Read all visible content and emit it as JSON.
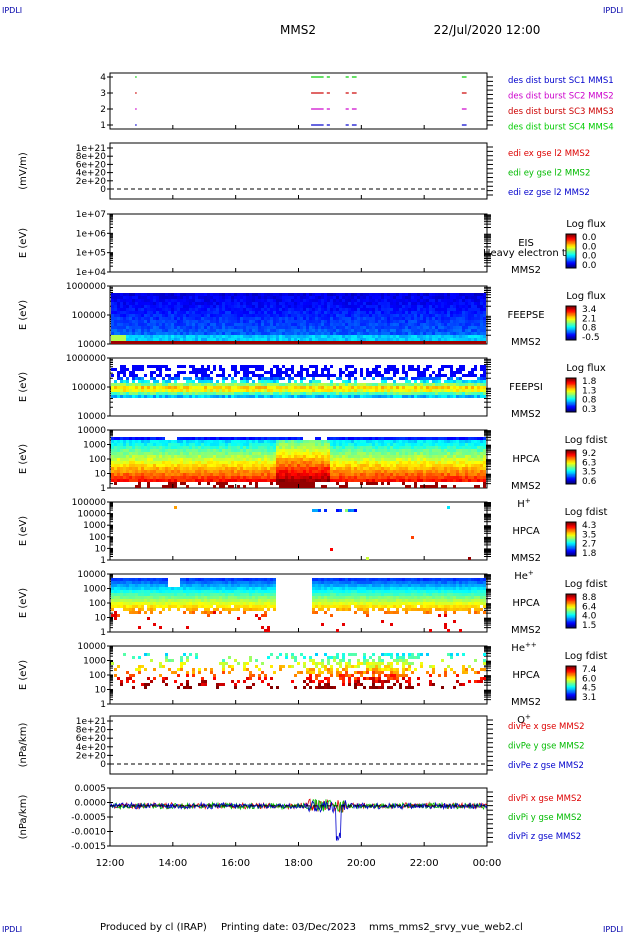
{
  "header": {
    "corner_label": "IPDLI",
    "spacecraft": "MMS2",
    "datetime": "22/Jul/2020 12:00"
  },
  "footer": {
    "produced_by": "Produced by cl (IRAP)",
    "printing_date": "Printing date: 03/Dec/2023",
    "script_name": "mms_mms2_srvy_vue_web2.cl"
  },
  "time_axis": {
    "ticks": [
      "12:00",
      "14:00",
      "16:00",
      "18:00",
      "20:00",
      "22:00",
      "00:00"
    ],
    "range_hours": [
      12,
      24
    ]
  },
  "colors": {
    "mms1": "#0000cc",
    "mms2": "#cc00cc",
    "mms3": "#cc0000",
    "mms4": "#00cc00",
    "x": "#dd0000",
    "y": "#00bb00",
    "z": "#0000cc"
  },
  "panels": [
    {
      "id": "burst",
      "type": "availability",
      "yticks": [
        "4",
        "3",
        "2",
        "1"
      ],
      "legend": [
        {
          "text": "des dist burst SC1 MMS1",
          "color": "#0000cc"
        },
        {
          "text": "des dist burst SC2 MMS2",
          "color": "#cc00cc"
        },
        {
          "text": "des dist burst SC3 MMS3",
          "color": "#cc0000"
        },
        {
          "text": "des dist burst SC4 MMS4",
          "color": "#00cc00"
        }
      ],
      "intervals_hours": [
        [
          12.8,
          12.85
        ],
        [
          18.4,
          18.8
        ],
        [
          18.9,
          19.0
        ],
        [
          19.5,
          19.6
        ],
        [
          19.7,
          19.85
        ],
        [
          23.2,
          23.35
        ]
      ]
    },
    {
      "id": "edi",
      "type": "line_empty",
      "ylabel": "(mV/m)",
      "yticks": [
        "1e+21",
        "8e+20",
        "6e+20",
        "4e+20",
        "2e+20",
        "0"
      ],
      "legend": [
        {
          "text": "edi ex gse l2 MMS2",
          "color": "#dd0000"
        },
        {
          "text": "edi ey gse l2 MMS2",
          "color": "#00bb00"
        },
        {
          "text": "edi ez gse l2 MMS2",
          "color": "#0000cc"
        }
      ]
    },
    {
      "id": "eis",
      "type": "spectrogram",
      "variant": "empty",
      "ylabel": "E (eV)",
      "yticks": [
        "1e+07",
        "1e+06",
        "1e+05",
        "1e+04"
      ],
      "instrument": "EIS",
      "instrument2": "MMS2",
      "overlay_text": "Heavy electron to",
      "cbar_title": "Log flux",
      "cbar_ticks": [
        "0.0",
        "0.0",
        "0.0",
        "0.0"
      ]
    },
    {
      "id": "feepse",
      "type": "spectrogram",
      "variant": "feeps_e",
      "ylabel": "E (eV)",
      "yticks": [
        "1000000",
        "100000",
        "10000"
      ],
      "instrument": "FEEPSE",
      "instrument2": "MMS2",
      "cbar_title": "Log flux",
      "cbar_ticks": [
        "3.4",
        "2.1",
        "0.8",
        "-0.5"
      ]
    },
    {
      "id": "feepsi",
      "type": "spectrogram",
      "variant": "feeps_i",
      "ylabel": "E (eV)",
      "yticks": [
        "1000000",
        "100000",
        "10000"
      ],
      "instrument": "FEEPSI",
      "instrument2": "MMS2",
      "cbar_title": "Log flux",
      "cbar_ticks": [
        "1.8",
        "1.3",
        "0.8",
        "0.3"
      ]
    },
    {
      "id": "hpca_h",
      "type": "spectrogram",
      "variant": "hpca_h",
      "ylabel": "E (eV)",
      "yticks": [
        "10000",
        "1000",
        "100",
        "10",
        "1"
      ],
      "instrument": "HPCA",
      "instrument2": "MMS2",
      "species": "H",
      "species_sup": "+",
      "cbar_title": "Log fdist",
      "cbar_ticks": [
        "9.2",
        "6.3",
        "3.5",
        "0.6"
      ]
    },
    {
      "id": "hpca_he",
      "type": "spectrogram",
      "variant": "hpca_he",
      "ylabel": "E (eV)",
      "yticks": [
        "100000",
        "10000",
        "1000",
        "100",
        "10",
        "1"
      ],
      "instrument": "HPCA",
      "instrument2": "MMS2",
      "species": "He",
      "species_sup": "+",
      "cbar_title": "Log fdist",
      "cbar_ticks": [
        "4.3",
        "3.5",
        "2.7",
        "1.8"
      ]
    },
    {
      "id": "hpca_he2",
      "type": "spectrogram",
      "variant": "hpca_he2",
      "ylabel": "E (eV)",
      "yticks": [
        "10000",
        "1000",
        "100",
        "10",
        "1"
      ],
      "instrument": "HPCA",
      "instrument2": "MMS2",
      "species": "He",
      "species_sup": "++",
      "cbar_title": "Log fdist",
      "cbar_ticks": [
        "8.8",
        "6.4",
        "4.0",
        "1.5"
      ]
    },
    {
      "id": "hpca_o",
      "type": "spectrogram",
      "variant": "hpca_o",
      "ylabel": "E (eV)",
      "yticks": [
        "10000",
        "1000",
        "100",
        "10",
        "1"
      ],
      "instrument": "HPCA",
      "instrument2": "MMS2",
      "species": "O",
      "species_sup": "+",
      "cbar_title": "Log fdist",
      "cbar_ticks": [
        "7.4",
        "6.0",
        "4.5",
        "3.1"
      ]
    },
    {
      "id": "divpe",
      "type": "line_empty",
      "ylabel": "(nPa/km)",
      "yticks": [
        "1e+21",
        "8e+20",
        "6e+20",
        "4e+20",
        "2e+20",
        "0"
      ],
      "legend": [
        {
          "text": "divPe x gse MMS2",
          "color": "#dd0000"
        },
        {
          "text": "divPe y gse MMS2",
          "color": "#00bb00"
        },
        {
          "text": "divPe z gse MMS2",
          "color": "#0000cc"
        }
      ]
    },
    {
      "id": "divpi",
      "type": "line_noise",
      "ylabel": "(nPa/km)",
      "yticks": [
        "0.0005",
        "0.0000",
        "-0.0005",
        "-0.0010",
        "-0.0015"
      ],
      "ylim": [
        -0.0018,
        0.0008
      ],
      "legend": [
        {
          "text": "divPi x gse MMS2",
          "color": "#dd0000"
        },
        {
          "text": "divPi y gse MMS2",
          "color": "#00bb00"
        },
        {
          "text": "divPi z gse MMS2",
          "color": "#0000cc"
        }
      ]
    }
  ],
  "chart_data": {
    "type": "heatmap",
    "title": "MMS2",
    "subtitle": "22/Jul/2020 12:00",
    "xlabel": "",
    "x_range": [
      "12:00",
      "00:00"
    ],
    "panels": [
      "des dist burst",
      "edi E gse",
      "EIS",
      "FEEPSE",
      "FEEPSI",
      "HPCA H+",
      "HPCA He+",
      "HPCA He++",
      "HPCA O+",
      "divPe gse",
      "divPi gse"
    ]
  }
}
